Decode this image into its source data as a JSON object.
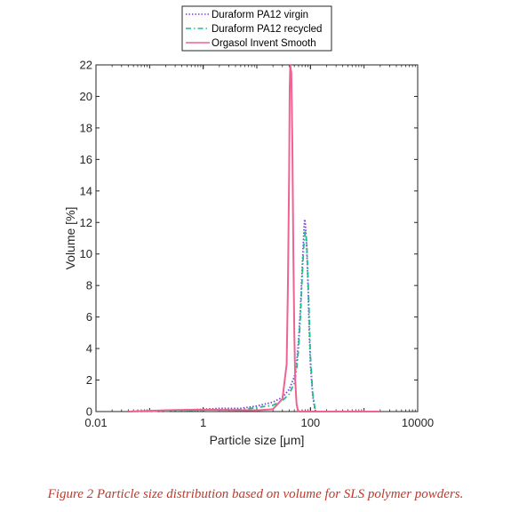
{
  "chart_data": {
    "type": "line",
    "xlabel": "Particle size [μm]",
    "ylabel": "Volume [%]",
    "xscale": "log",
    "xlim": [
      0.01,
      10000
    ],
    "ylim": [
      0,
      22
    ],
    "xticks": [
      "0.01",
      "1",
      "100",
      "10000"
    ],
    "yticks": [
      "0",
      "2",
      "4",
      "6",
      "8",
      "10",
      "12",
      "14",
      "16",
      "18",
      "20",
      "22"
    ],
    "legend_position": "top-center",
    "series": [
      {
        "name": "Duraform PA12 virgin",
        "color": "#7b3fe4",
        "style": "dotted",
        "x": [
          0.04,
          0.1,
          0.3,
          1,
          2,
          5,
          10,
          20,
          30,
          40,
          50,
          55,
          60,
          65,
          70,
          75,
          78,
          80,
          85,
          90,
          95,
          100,
          110,
          120,
          125
        ],
        "y": [
          0.0,
          0.02,
          0.08,
          0.15,
          0.2,
          0.2,
          0.35,
          0.6,
          0.9,
          1.4,
          2.2,
          3.0,
          4.5,
          6.5,
          9.0,
          11.3,
          12.2,
          12.0,
          10.5,
          8.0,
          5.0,
          3.0,
          1.0,
          0.2,
          0.0
        ]
      },
      {
        "name": "Duraform PA12 recycled",
        "color": "#1fbf84",
        "style": "dash-dot",
        "x": [
          0.04,
          0.1,
          0.3,
          1,
          2,
          5,
          10,
          20,
          30,
          40,
          50,
          55,
          60,
          65,
          70,
          75,
          80,
          85,
          90,
          95,
          100,
          110,
          120,
          125
        ],
        "y": [
          0.0,
          0.02,
          0.05,
          0.1,
          0.12,
          0.12,
          0.25,
          0.4,
          0.7,
          1.1,
          1.8,
          2.6,
          4.0,
          6.0,
          8.5,
          10.5,
          11.5,
          10.8,
          8.5,
          6.0,
          3.5,
          1.2,
          0.3,
          0.0
        ]
      },
      {
        "name": "Orgasol Invent Smooth",
        "color": "#f06292",
        "style": "solid",
        "x": [
          0.04,
          0.1,
          0.3,
          1,
          3,
          10,
          20,
          30,
          36,
          38,
          40,
          41,
          42,
          44,
          46,
          48,
          50,
          52,
          55,
          58,
          60,
          70,
          100,
          300,
          1000,
          2000
        ],
        "y": [
          0.0,
          0.05,
          0.1,
          0.12,
          0.1,
          0.08,
          0.15,
          0.8,
          3.0,
          8.0,
          15.0,
          20.5,
          22.0,
          21.5,
          17.0,
          10.0,
          5.0,
          2.0,
          0.5,
          0.1,
          0.0,
          0.0,
          0.0,
          0.0,
          0.0,
          0.0
        ]
      }
    ]
  },
  "caption": "Figure 2  Particle size distribution based on volume for SLS polymer powders."
}
